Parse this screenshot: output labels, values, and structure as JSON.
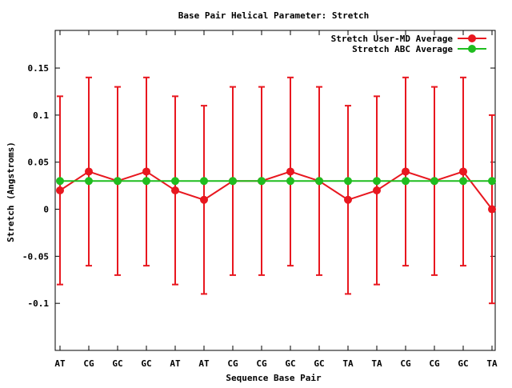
{
  "chart_data": {
    "type": "line",
    "title": "Base Pair Helical Parameter: Stretch",
    "xlabel": "Sequence Base Pair",
    "ylabel": "Stretch (Angstroms)",
    "ylim": [
      -0.15,
      0.19
    ],
    "yticks": [
      {
        "value": 0.15,
        "label": "0.15"
      },
      {
        "value": 0.1,
        "label": "0.1"
      },
      {
        "value": 0.05,
        "label": "0.05"
      },
      {
        "value": 0,
        "label": "0"
      },
      {
        "value": -0.05,
        "label": "-0.05"
      },
      {
        "value": -0.1,
        "label": "-0.1"
      }
    ],
    "categories": [
      "AT",
      "CG",
      "GC",
      "GC",
      "AT",
      "AT",
      "CG",
      "CG",
      "GC",
      "GC",
      "TA",
      "TA",
      "CG",
      "CG",
      "GC",
      "TA"
    ],
    "legend_position": "top-right",
    "series": [
      {
        "name": "Stretch User-MD Average",
        "color": "#e8171f",
        "values": [
          0.02,
          0.04,
          0.03,
          0.04,
          0.02,
          0.01,
          0.03,
          0.03,
          0.04,
          0.03,
          0.01,
          0.02,
          0.04,
          0.03,
          0.04,
          0.0
        ],
        "error": [
          0.1,
          0.1,
          0.1,
          0.1,
          0.1,
          0.1,
          0.1,
          0.1,
          0.1,
          0.1,
          0.1,
          0.1,
          0.1,
          0.1,
          0.1,
          0.1
        ]
      },
      {
        "name": "Stretch ABC Average",
        "color": "#1fbd1f",
        "values": [
          0.03,
          0.03,
          0.03,
          0.03,
          0.03,
          0.03,
          0.03,
          0.03,
          0.03,
          0.03,
          0.03,
          0.03,
          0.03,
          0.03,
          0.03,
          0.03
        ]
      }
    ]
  }
}
